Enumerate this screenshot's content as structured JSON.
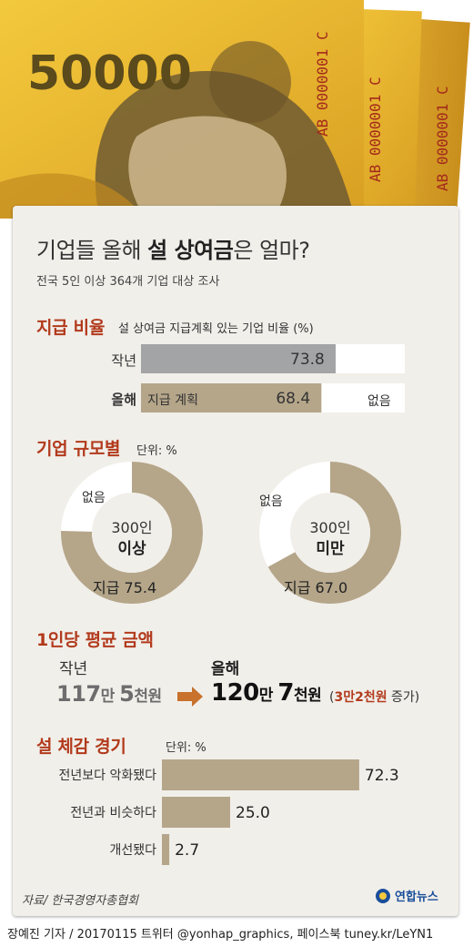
{
  "header": {
    "banknote_denomination": "50000",
    "serial_number": "AB 0000001 C"
  },
  "title": {
    "prefix": "기업들 올해 ",
    "emphasis": "설 상여금",
    "suffix": "은 얼마?"
  },
  "subtitle": "전국 5인 이상 364개 기업 대상 조사",
  "section_payment_ratio": {
    "title": "지급 비율",
    "description": "설 상여금 지급계획 있는 기업 비율 (%)",
    "rows": [
      {
        "label": "작년",
        "value": 73.8,
        "value_text": "73.8",
        "inner_label": "",
        "rest_label": "",
        "color": "#a3a4a6"
      },
      {
        "label": "올해",
        "value": 68.4,
        "value_text": "68.4",
        "inner_label": "지급 계획",
        "rest_label": "없음",
        "color": "#b5a68a"
      }
    ]
  },
  "section_company_size": {
    "title": "기업 규모별",
    "unit": "단위: %",
    "donuts": [
      {
        "center_line1": "300인",
        "center_line2": "이상",
        "paid_label": "지급",
        "paid_value": 75.4,
        "paid_text": "75.4",
        "none_label": "없음"
      },
      {
        "center_line1": "300인",
        "center_line2": "미만",
        "paid_label": "지급",
        "paid_value": 67.0,
        "paid_text": "67.0",
        "none_label": "없음"
      }
    ],
    "colors": {
      "paid": "#b5a68a",
      "none": "#ffffff"
    }
  },
  "section_average_amount": {
    "title": "1인당 평균 금액",
    "last_year": {
      "label": "작년",
      "man": "117",
      "man_unit": "만 ",
      "cheon": "5",
      "cheon_unit": "천원"
    },
    "this_year": {
      "label": "올해",
      "man": "120",
      "man_unit": "만 ",
      "cheon": "7",
      "cheon_unit": "천원"
    },
    "increase": {
      "open": "(",
      "amount": "3만2천원",
      "text": " 증가)"
    },
    "arrow_color": "#c8722e"
  },
  "section_economy": {
    "title": "설 체감 경기",
    "unit": "단위: %",
    "rows": [
      {
        "label": "전년보다 악화됐다",
        "value": 72.3,
        "value_text": "72.3"
      },
      {
        "label": "전년과 비슷하다",
        "value": 25.0,
        "value_text": "25.0"
      },
      {
        "label": "개선됐다",
        "value": 2.7,
        "value_text": "2.7"
      }
    ],
    "color": "#b5a68a"
  },
  "footer": {
    "source": "자료/ 한국경영자총협회",
    "logo": "연합뉴스",
    "credit": "장예진 기자 / 20170115 트위터 @yonhap_graphics, 페이스북 tuney.kr/LeYN1"
  },
  "chart_data": [
    {
      "type": "bar",
      "title": "지급 비율",
      "ylabel": "설 상여금 지급계획 있는 기업 비율 (%)",
      "categories": [
        "작년",
        "올해"
      ],
      "values": [
        73.8,
        68.4
      ],
      "ylim": [
        0,
        100
      ]
    },
    {
      "type": "pie",
      "title": "300인 이상",
      "categories": [
        "지급",
        "없음"
      ],
      "values": [
        75.4,
        24.6
      ]
    },
    {
      "type": "pie",
      "title": "300인 미만",
      "categories": [
        "지급",
        "없음"
      ],
      "values": [
        67.0,
        33.0
      ]
    },
    {
      "type": "table",
      "title": "1인당 평균 금액",
      "categories": [
        "작년",
        "올해"
      ],
      "values": [
        "117만 5천원",
        "120만 7천원"
      ]
    },
    {
      "type": "bar",
      "title": "설 체감 경기",
      "categories": [
        "전년보다 악화됐다",
        "전년과 비슷하다",
        "개선됐다"
      ],
      "values": [
        72.3,
        25.0,
        2.7
      ],
      "ylim": [
        0,
        100
      ]
    }
  ]
}
